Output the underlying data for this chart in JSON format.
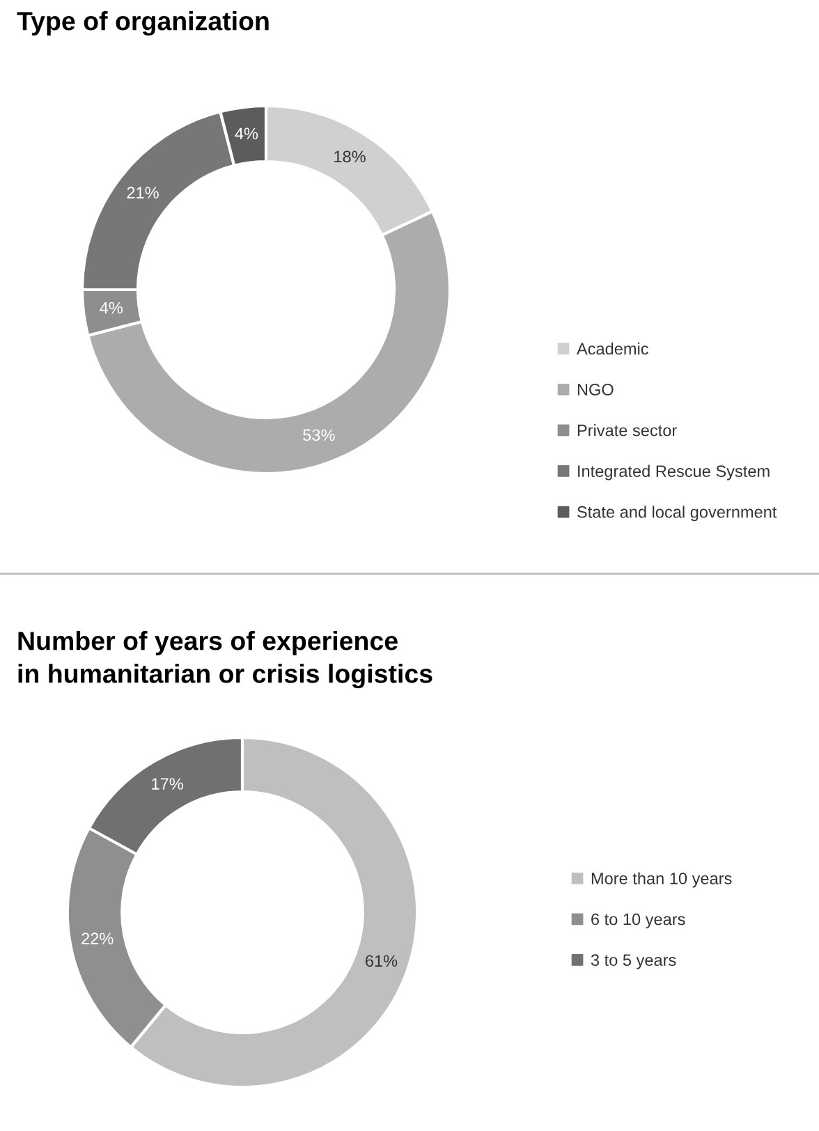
{
  "chart_data": [
    {
      "type": "donut",
      "title": "Type of organization",
      "categories": [
        "Academic",
        "NGO",
        "Private sector",
        "Integrated Rescue System",
        "State and local government"
      ],
      "values": [
        18,
        53,
        4,
        21,
        4
      ],
      "value_labels": [
        "18%",
        "53%",
        "4%",
        "21%",
        "4%"
      ],
      "colors": [
        "#d0d0d0",
        "#acacac",
        "#8e8e8e",
        "#777777",
        "#5c5c5c"
      ],
      "legend": "right"
    },
    {
      "type": "donut",
      "title": "Number of years of experience\nin humanitarian or crisis logistics",
      "categories": [
        "More than 10 years",
        "6 to 10 years",
        "3 to 5 years"
      ],
      "values": [
        61,
        22,
        17
      ],
      "value_labels": [
        "61%",
        "22%",
        "17%"
      ],
      "colors": [
        "#bfbfbf",
        "#8f8f8f",
        "#707070"
      ],
      "legend": "right"
    }
  ]
}
